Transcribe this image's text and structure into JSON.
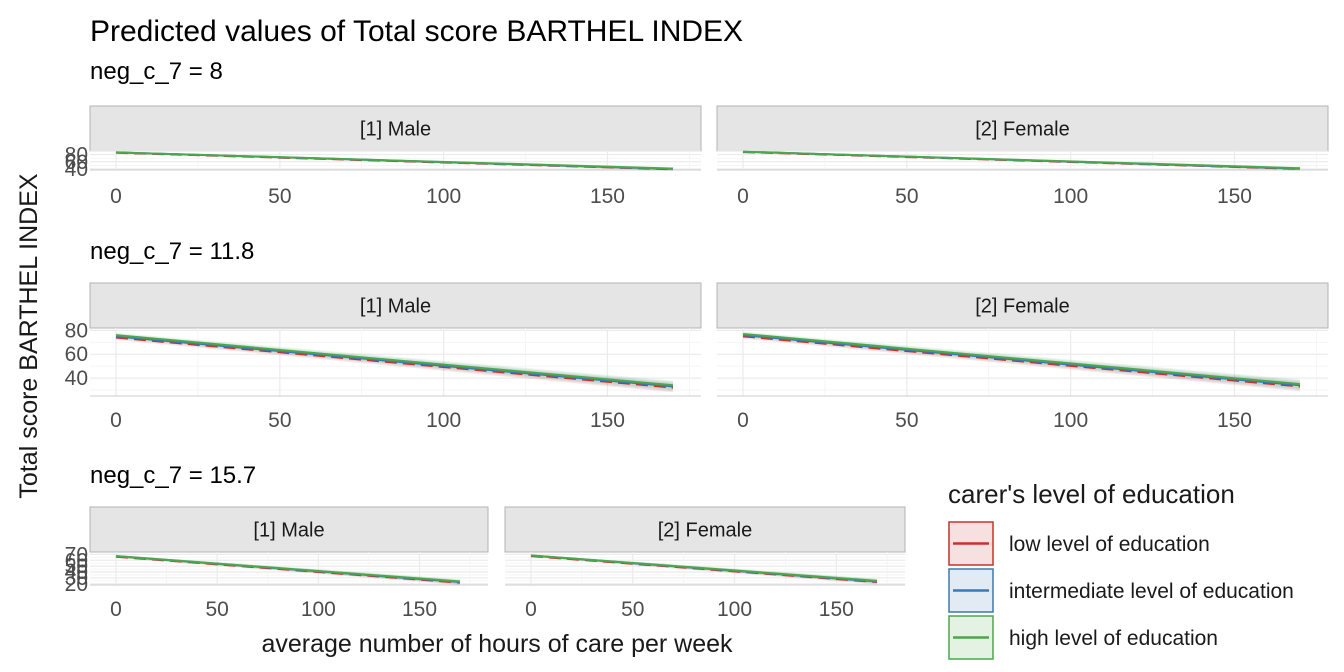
{
  "chart_data": {
    "type": "line",
    "title": "Predicted values of Total score BARTHEL INDEX",
    "xlabel": "average number of hours of care per week",
    "ylabel": "Total score BARTHEL INDEX",
    "x_ticks": [
      0,
      50,
      100,
      150
    ],
    "xlim": [
      0,
      170
    ],
    "grid": true,
    "legend": {
      "title": "carer's level of education",
      "placement": "bottom-right",
      "entries": [
        {
          "label": "low level of education",
          "color": "#c9302c"
        },
        {
          "label": "intermediate level of education",
          "color": "#3c78b4"
        },
        {
          "label": "high level of education",
          "color": "#4aa84a"
        }
      ]
    },
    "panels": [
      {
        "label": "neg_c_7 = 8",
        "y_ticks": [
          40,
          60,
          80
        ],
        "y_tick_labels": [
          "40",
          "60",
          "80"
        ],
        "ylim": [
          37,
          90
        ],
        "facets": [
          {
            "label": "[1] Male",
            "series": [
              {
                "name": "low level of education",
                "x": [
                  0,
                  170
                ],
                "y": [
                  85,
                  39
                ]
              },
              {
                "name": "intermediate level of education",
                "x": [
                  0,
                  170
                ],
                "y": [
                  86,
                  40
                ]
              },
              {
                "name": "high level of education",
                "x": [
                  0,
                  170
                ],
                "y": [
                  86,
                  41
                ]
              }
            ]
          },
          {
            "label": "[2] Female",
            "series": [
              {
                "name": "low level of education",
                "x": [
                  0,
                  170
                ],
                "y": [
                  87,
                  40
                ]
              },
              {
                "name": "intermediate level of education",
                "x": [
                  0,
                  170
                ],
                "y": [
                  88,
                  41
                ]
              },
              {
                "name": "high level of education",
                "x": [
                  0,
                  170
                ],
                "y": [
                  88,
                  42
                ]
              }
            ]
          }
        ]
      },
      {
        "label": "neg_c_7 = 11.8",
        "y_ticks": [
          40,
          60,
          80
        ],
        "y_tick_labels": [
          "40",
          "60",
          "80"
        ],
        "ylim": [
          25,
          82
        ],
        "facets": [
          {
            "label": "[1] Male",
            "series": [
              {
                "name": "low level of education",
                "x": [
                  0,
                  170
                ],
                "y": [
                  74,
                  32
                ]
              },
              {
                "name": "intermediate level of education",
                "x": [
                  0,
                  170
                ],
                "y": [
                  75,
                  33
                ]
              },
              {
                "name": "high level of education",
                "x": [
                  0,
                  170
                ],
                "y": [
                  76,
                  34
                ]
              }
            ]
          },
          {
            "label": "[2] Female",
            "series": [
              {
                "name": "low level of education",
                "x": [
                  0,
                  170
                ],
                "y": [
                  75,
                  33
                ]
              },
              {
                "name": "intermediate level of education",
                "x": [
                  0,
                  170
                ],
                "y": [
                  76,
                  34
                ]
              },
              {
                "name": "high level of education",
                "x": [
                  0,
                  170
                ],
                "y": [
                  77,
                  35
                ]
              }
            ]
          }
        ]
      },
      {
        "label": "neg_c_7 = 15.7",
        "y_ticks": [
          20,
          30,
          40,
          50,
          60,
          70
        ],
        "y_tick_labels": [
          "20",
          "30",
          "40",
          "50",
          "60",
          "70"
        ],
        "ylim": [
          18,
          74
        ],
        "facets": [
          {
            "label": "[1] Male",
            "series": [
              {
                "name": "low level of education",
                "x": [
                  0,
                  170
                ],
                "y": [
                  66,
                  22
                ]
              },
              {
                "name": "intermediate level of education",
                "x": [
                  0,
                  170
                ],
                "y": [
                  67,
                  23
                ]
              },
              {
                "name": "high level of education",
                "x": [
                  0,
                  170
                ],
                "y": [
                  67,
                  24
                ]
              }
            ]
          },
          {
            "label": "[2] Female",
            "series": [
              {
                "name": "low level of education",
                "x": [
                  0,
                  170
                ],
                "y": [
                  67,
                  23
                ]
              },
              {
                "name": "intermediate level of education",
                "x": [
                  0,
                  170
                ],
                "y": [
                  68,
                  24
                ]
              },
              {
                "name": "high level of education",
                "x": [
                  0,
                  170
                ],
                "y": [
                  68,
                  25
                ]
              }
            ]
          }
        ]
      }
    ]
  }
}
